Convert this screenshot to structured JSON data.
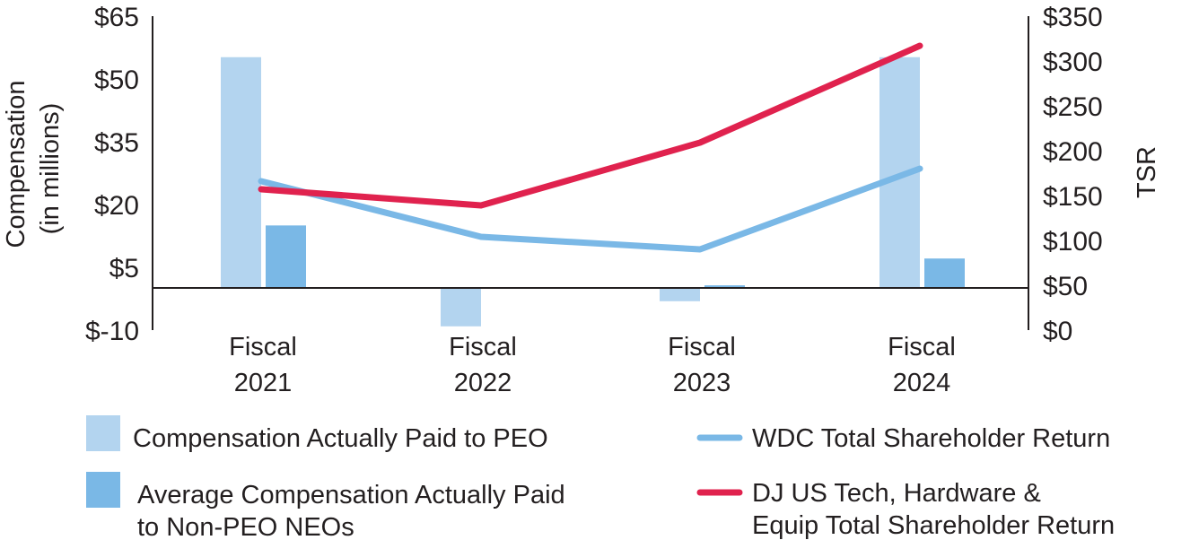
{
  "chart_data": {
    "type": "bar+line",
    "categories": [
      {
        "line1": "Fiscal",
        "line2": "2021"
      },
      {
        "line1": "Fiscal",
        "line2": "2022"
      },
      {
        "line1": "Fiscal",
        "line2": "2023"
      },
      {
        "line1": "Fiscal",
        "line2": "2024"
      }
    ],
    "left_axis": {
      "title_line1": "Compensation",
      "title_line2": "(in millions)",
      "min": -10,
      "max": 65,
      "ticks": [
        65,
        50,
        35,
        20,
        5,
        -10
      ],
      "tick_labels": [
        "$65",
        "$50",
        "$35",
        "$20",
        "$5",
        "$-10"
      ]
    },
    "right_axis": {
      "title": "TSR",
      "min": 0,
      "max": 350,
      "ticks": [
        350,
        300,
        250,
        200,
        150,
        100,
        50,
        0
      ],
      "tick_labels": [
        "$350",
        "$300",
        "$250",
        "$200",
        "$150",
        "$100",
        "$50",
        "$0"
      ]
    },
    "bar_series": [
      {
        "name": "Compensation Actually Paid to PEO",
        "color": "#b3d4ef",
        "axis": "left",
        "values": [
          55.2,
          -9.1,
          -3.1,
          55.2
        ]
      },
      {
        "name": "Average Compensation Actually Paid to Non-PEO NEOs",
        "color": "#7ab8e6",
        "axis": "left",
        "values": [
          15.0,
          null,
          0.7,
          7.1
        ]
      }
    ],
    "line_series": [
      {
        "name": "WDC Total Shareholder Return",
        "color": "#7ab8e6",
        "axis": "right",
        "values": [
          166,
          104,
          90,
          180
        ]
      },
      {
        "name": "DJ US Tech, Hardware & Equip Total Shareholder Return",
        "color": "#e0224e",
        "axis": "right",
        "values": [
          157,
          139,
          209,
          317
        ]
      }
    ],
    "legend": {
      "bar1_label": "Compensation Actually Paid to PEO",
      "bar2_label_line1": "Average Compensation Actually Paid",
      "bar2_label_line2": "to Non-PEO NEOs",
      "line1_label": "WDC Total Shareholder Return",
      "line2_label_line1": "DJ US Tech, Hardware &",
      "line2_label_line2": "Equip Total Shareholder Return"
    }
  }
}
